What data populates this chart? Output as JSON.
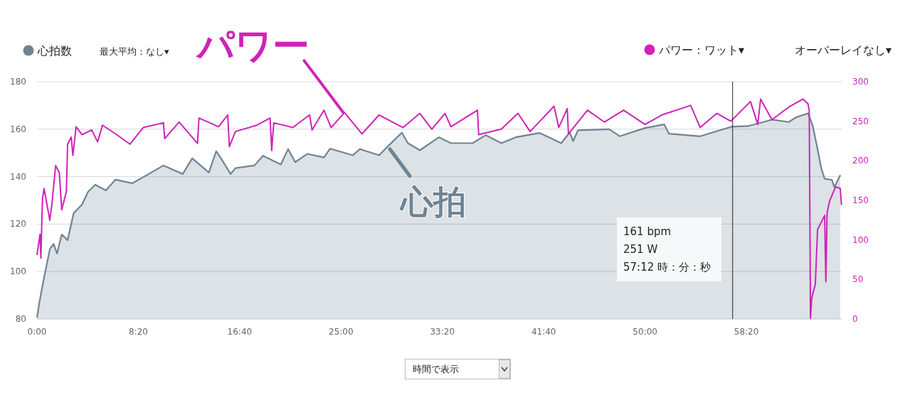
{
  "chart_data": {
    "type": "area",
    "xlim": [
      0,
      3970
    ],
    "xticks": [
      {
        "value": 0,
        "label": "0:00"
      },
      {
        "value": 500,
        "label": "8:20"
      },
      {
        "value": 1000,
        "label": "16:40"
      },
      {
        "value": 1500,
        "label": "25:00"
      },
      {
        "value": 2000,
        "label": "33:20"
      },
      {
        "value": 2500,
        "label": "41:40"
      },
      {
        "value": 3000,
        "label": "50:00"
      },
      {
        "value": 3500,
        "label": "58:20"
      }
    ],
    "ylim": [
      80,
      180
    ],
    "yticks": [
      80,
      100,
      120,
      140,
      160,
      180
    ],
    "y2lim": [
      0,
      300
    ],
    "y2ticks": [
      0,
      50,
      100,
      150,
      200,
      250,
      300
    ],
    "grid": "y",
    "legend": "top",
    "series": [
      {
        "name": "心拍数",
        "color": "#6e8494",
        "x": [
          0,
          11,
          32,
          64,
          82,
          99,
          122,
          151,
          181,
          222,
          252,
          287,
          340,
          387,
          470,
          541,
          624,
          719,
          766,
          848,
          884,
          908,
          955,
          979,
          1073,
          1115,
          1203,
          1239,
          1274,
          1333,
          1416,
          1446,
          1558,
          1593,
          1688,
          1735,
          1800,
          1830,
          1889,
          1983,
          2042,
          2149,
          2214,
          2291,
          2362,
          2480,
          2586,
          2628,
          2645,
          2669,
          2823,
          2876,
          3000,
          3095,
          3118,
          3272,
          3425,
          3508,
          3626,
          3709,
          3745,
          3804,
          3827,
          3851,
          3869,
          3886,
          3922,
          3934,
          3963
        ],
        "values": [
          80.6,
          86.6,
          96.2,
          109.6,
          111.6,
          107.6,
          115.6,
          113.2,
          124.6,
          128.2,
          133.6,
          136.6,
          134.2,
          138.7,
          137.2,
          140.6,
          144.7,
          141.1,
          147.7,
          141.7,
          150.7,
          147.7,
          141.1,
          143.6,
          144.7,
          148.8,
          145.1,
          151.6,
          146.1,
          149.6,
          148.1,
          151.8,
          149,
          151.6,
          149,
          153.1,
          158.5,
          154.1,
          151.1,
          156.6,
          154.1,
          154.1,
          157.5,
          154.1,
          156.6,
          158.4,
          154.1,
          158.6,
          155,
          159.5,
          160,
          157,
          160.5,
          162,
          158.1,
          157,
          161,
          161.3,
          164,
          163,
          165,
          166.7,
          161.5,
          151.6,
          143.6,
          139.1,
          138.6,
          135.6,
          140.6
        ]
      },
      {
        "name": "パワー：ワット▾",
        "type": "line",
        "axis": "y2",
        "color": "#cf23b9",
        "x": [
          0,
          15,
          19,
          27,
          35,
          63,
          74,
          92,
          110,
          122,
          145,
          151,
          169,
          177,
          193,
          222,
          270,
          299,
          323,
          388,
          459,
          524,
          624,
          630,
          701,
          792,
          799,
          896,
          941,
          949,
          979,
          1085,
          1150,
          1158,
          1168,
          1262,
          1345,
          1357,
          1416,
          1451,
          1517,
          1603,
          1688,
          1806,
          1889,
          1948,
          2013,
          2042,
          2173,
          2179,
          2291,
          2373,
          2433,
          2551,
          2574,
          2616,
          2622,
          2716,
          2799,
          2894,
          3000,
          3083,
          3225,
          3272,
          3354,
          3423,
          3520,
          3556,
          3570,
          3626,
          3715,
          3780,
          3804,
          3810,
          3816,
          3822,
          3840,
          3851,
          3886,
          3892,
          3898,
          3910,
          3940,
          3963,
          3969
        ],
        "values": [
          81,
          107,
          77,
          152,
          165,
          125,
          146,
          194,
          185,
          138,
          161,
          221,
          230,
          207,
          243,
          233,
          239,
          224,
          245,
          234,
          221,
          242,
          248,
          228,
          249,
          222,
          254,
          243,
          258,
          218,
          237,
          245,
          254,
          213,
          248,
          242,
          258,
          239,
          264,
          242,
          261,
          234,
          258,
          242,
          260,
          240,
          260,
          243,
          264,
          233,
          240,
          260,
          237,
          269,
          242,
          266,
          234,
          264,
          249,
          264,
          246,
          258,
          270,
          242,
          260,
          250,
          275,
          246,
          278,
          252,
          269,
          278,
          272,
          263,
          0,
          26,
          44,
          113,
          131,
          47,
          134,
          149,
          167,
          165,
          144
        ]
      }
    ],
    "ref_lines": [
      {
        "axis": "x",
        "value": 3432,
        "color": "#222222"
      }
    ],
    "annotations": [
      "最大平均：なし▾",
      "オーバーレイなし▾",
      {
        "text": "パワー",
        "x": 1511,
        "y": 167
      },
      {
        "text": "心拍",
        "x": 1741,
        "y": 151.6
      },
      "161 bpm",
      "251 W",
      "57:12 時：分：秒",
      "時間で表示"
    ]
  }
}
